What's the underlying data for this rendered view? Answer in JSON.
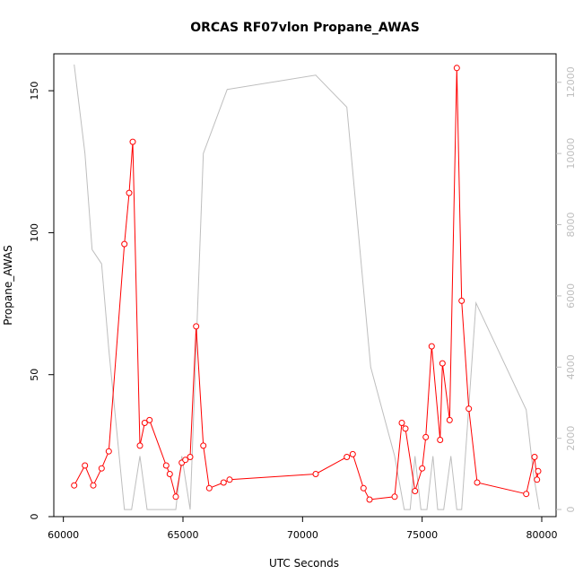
{
  "chart_data": {
    "type": "line",
    "title": "ORCAS RF07vlon Propane_AWAS",
    "xlabel": "UTC Seconds",
    "ylabel": "Propane_AWAS",
    "xlim": [
      59600,
      80600
    ],
    "ylim": [
      0,
      163
    ],
    "ylim_right": [
      -200,
      12800
    ],
    "x_ticks": [
      60000,
      65000,
      70000,
      75000,
      80000
    ],
    "y_ticks": [
      0,
      50,
      100,
      150
    ],
    "y_ticks_right": [
      0,
      2000,
      4000,
      6000,
      8000,
      10000,
      12000
    ],
    "grid": false,
    "series": [
      {
        "color": "#ff0000",
        "axis": "left",
        "marker": "open-circle",
        "x": [
          60450,
          60900,
          61250,
          61600,
          61900,
          62550,
          62750,
          62900,
          63200,
          63400,
          63600,
          64300,
          64450,
          64700,
          64950,
          65100,
          65300,
          65550,
          65850,
          66100,
          66700,
          66950,
          70550,
          71850,
          72100,
          72550,
          72800,
          73850,
          74150,
          74300,
          74700,
          75000,
          75150,
          75400,
          75750,
          75850,
          76150,
          76450,
          76650,
          76950,
          77300,
          79350,
          79700,
          79800,
          79850
        ],
        "y": [
          11,
          18,
          11,
          17,
          23,
          96,
          114,
          132,
          25,
          33,
          34,
          18,
          15,
          7,
          19,
          20,
          21,
          67,
          25,
          10,
          12,
          13,
          15,
          21,
          22,
          10,
          6,
          7,
          33,
          31,
          9,
          17,
          28,
          60,
          27,
          54,
          34,
          158,
          76,
          38,
          12,
          8,
          21,
          13,
          16
        ]
      },
      {
        "color": "#bebebe",
        "axis": "right",
        "marker": "none",
        "x": [
          60450,
          60900,
          61200,
          61600,
          61900,
          62550,
          62850,
          63200,
          63500,
          63800,
          64350,
          64700,
          64950,
          65300,
          65850,
          66850,
          70550,
          71850,
          72850,
          73850,
          74250,
          74500,
          74700,
          74950,
          75200,
          75450,
          75650,
          75900,
          76200,
          76450,
          76650,
          77250,
          79350,
          79650,
          79900
        ],
        "y": [
          12500,
          10000,
          7300,
          6900,
          4500,
          0,
          0,
          1500,
          0,
          0,
          0,
          0,
          1500,
          0,
          10000,
          11800,
          12200,
          11300,
          4000,
          1500,
          0,
          0,
          1500,
          0,
          0,
          1500,
          0,
          0,
          1500,
          0,
          0,
          5800,
          2800,
          1000,
          0
        ]
      }
    ]
  }
}
